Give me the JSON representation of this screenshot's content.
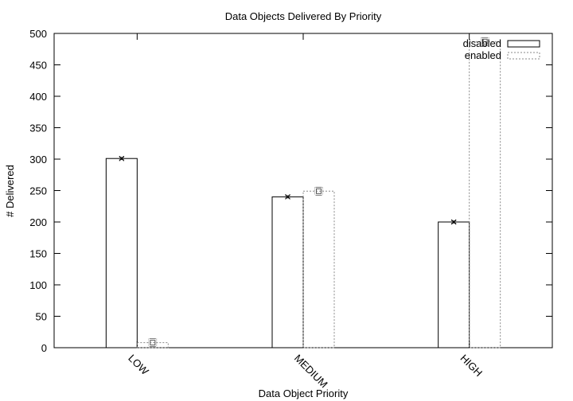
{
  "chart_data": {
    "type": "bar",
    "title": "Data Objects Delivered By Priority",
    "xlabel": "Data Object Priority",
    "ylabel": "# Delivered",
    "categories": [
      "LOW",
      "MEDIUM",
      "HIGH"
    ],
    "ylim": [
      0,
      500
    ],
    "yticks": [
      0,
      50,
      100,
      150,
      200,
      250,
      300,
      350,
      400,
      450,
      500
    ],
    "legend_position": "top-right",
    "grid": false,
    "series": [
      {
        "name": "disabled",
        "line_style": "solid",
        "point_symbol": "x",
        "values": [
          301,
          240,
          200
        ]
      },
      {
        "name": "enabled",
        "line_style": "dotted",
        "point_symbol": "square",
        "values": [
          8,
          249,
          487
        ]
      }
    ]
  }
}
